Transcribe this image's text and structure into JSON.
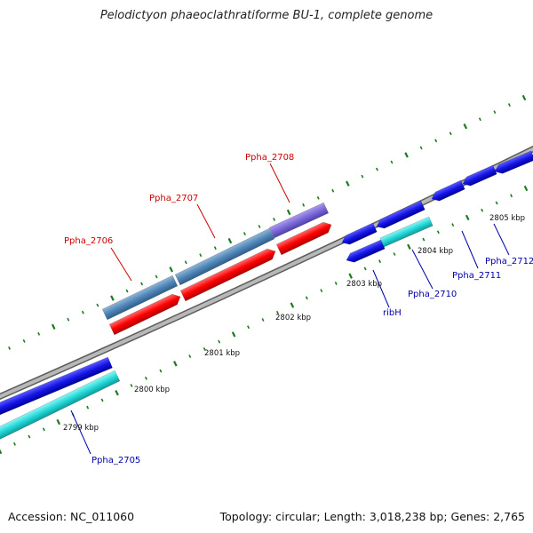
{
  "title": "Pelodictyon phaeoclathratiforme BU-1, complete genome",
  "footer": {
    "accession": "Accession: NC_011060",
    "summary": "Topology: circular; Length: 3,018,238 bp; Genes: 2,765"
  },
  "colors": {
    "backbone": "#8a8a8a",
    "tick": "#1e7a1e",
    "label_plus": "#cc0000",
    "label_minus": "#0000aa",
    "gene_red": "#ff0000",
    "gene_steel": "#4f86b8",
    "gene_purple": "#7b68d8",
    "gene_blue": "#1515e6",
    "gene_cyan": "#22d8d8"
  },
  "kbp_labels": [
    "2799 kbp",
    "2800 kbp",
    "2801 kbp",
    "2802 kbp",
    "2803 kbp",
    "2804 kbp",
    "2805 kbp"
  ],
  "gene_labels": [
    "Ppha_2706",
    "Ppha_2707",
    "Ppha_2708",
    "Ppha_2705",
    "ribH",
    "Ppha_2710",
    "Ppha_2711",
    "Ppha_2712"
  ]
}
